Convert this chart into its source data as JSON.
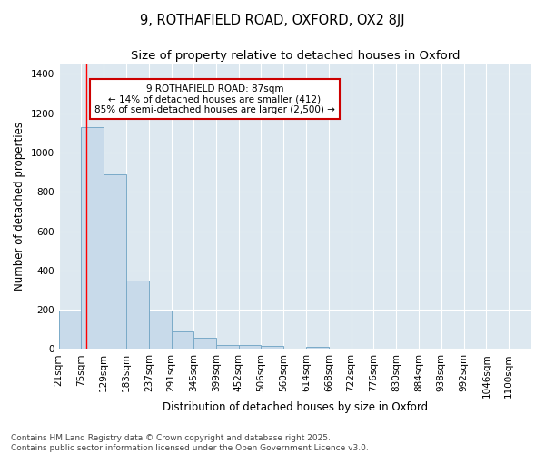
{
  "title_line1": "9, ROTHAFIELD ROAD, OXFORD, OX2 8JJ",
  "title_line2": "Size of property relative to detached houses in Oxford",
  "xlabel": "Distribution of detached houses by size in Oxford",
  "ylabel": "Number of detached properties",
  "bar_color": "#c8daea",
  "bar_edge_color": "#7aaac8",
  "plot_bg_color": "#dde8f0",
  "fig_bg_color": "#ffffff",
  "grid_color": "#ffffff",
  "annotation_box_color": "#cc0000",
  "annotation_text": "9 ROTHAFIELD ROAD: 87sqm\n← 14% of detached houses are smaller (412)\n85% of semi-detached houses are larger (2,500) →",
  "vline_x": 87,
  "categories": [
    "21sqm",
    "75sqm",
    "129sqm",
    "183sqm",
    "237sqm",
    "291sqm",
    "345sqm",
    "399sqm",
    "452sqm",
    "506sqm",
    "560sqm",
    "614sqm",
    "668sqm",
    "722sqm",
    "776sqm",
    "830sqm",
    "884sqm",
    "938sqm",
    "992sqm",
    "1046sqm",
    "1100sqm"
  ],
  "bin_edges": [
    21,
    75,
    129,
    183,
    237,
    291,
    345,
    399,
    452,
    506,
    560,
    614,
    668,
    722,
    776,
    830,
    884,
    938,
    992,
    1046,
    1100
  ],
  "values": [
    195,
    1130,
    890,
    350,
    195,
    90,
    55,
    22,
    20,
    15,
    0,
    12,
    0,
    0,
    0,
    0,
    0,
    0,
    0,
    0
  ],
  "ylim": [
    0,
    1450
  ],
  "yticks": [
    0,
    200,
    400,
    600,
    800,
    1000,
    1200,
    1400
  ],
  "footer_text": "Contains HM Land Registry data © Crown copyright and database right 2025.\nContains public sector information licensed under the Open Government Licence v3.0.",
  "title_fontsize": 10.5,
  "subtitle_fontsize": 9.5,
  "axis_label_fontsize": 8.5,
  "tick_fontsize": 7.5,
  "annotation_fontsize": 7.5,
  "footer_fontsize": 6.5
}
